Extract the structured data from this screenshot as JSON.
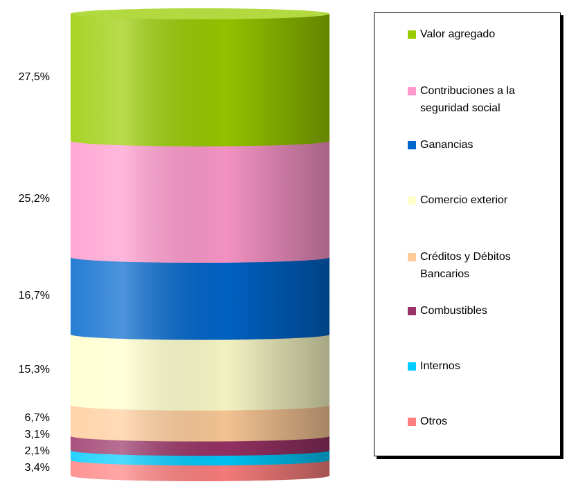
{
  "chart_data": {
    "type": "bar",
    "stacked": true,
    "series": [
      {
        "name": "Valor agregado",
        "color": "#99cc00",
        "values": [
          27.5
        ],
        "value_labels": [
          "27,5%"
        ]
      },
      {
        "name": "Contribuciones a la seguridad social",
        "color": "#ff99cc",
        "values": [
          25.2
        ],
        "value_labels": [
          "25,2%"
        ]
      },
      {
        "name": "Ganancias",
        "color": "#0066cc",
        "values": [
          16.7
        ],
        "value_labels": [
          "16,7%"
        ]
      },
      {
        "name": "Comercio exterior",
        "color": "#ffffcc",
        "values": [
          15.3
        ],
        "value_labels": [
          "15,3%"
        ]
      },
      {
        "name": "Créditos y Débitos Bancarios",
        "color": "#ffcc99",
        "values": [
          6.7
        ],
        "value_labels": [
          "6,7%"
        ]
      },
      {
        "name": "Combustibles",
        "color": "#993366",
        "values": [
          3.1
        ],
        "value_labels": [
          "3,1%"
        ]
      },
      {
        "name": "Internos",
        "color": "#00ccff",
        "values": [
          2.1
        ],
        "value_labels": [
          "2,1%"
        ]
      },
      {
        "name": "Otros",
        "color": "#ff8080",
        "values": [
          3.4
        ],
        "value_labels": [
          "3,4%"
        ]
      }
    ]
  }
}
